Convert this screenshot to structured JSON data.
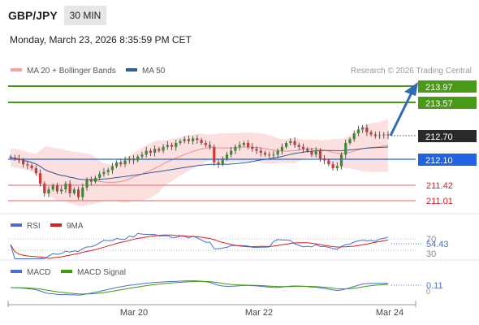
{
  "header": {
    "symbol": "GBP/JPY",
    "timeframe": "30 MIN",
    "datetime": "Monday, March 23, 2026 8:35:59 PM CET",
    "credit": "Research © 2026 Trading Central"
  },
  "colors": {
    "bollinger": "#f7a1a1",
    "ma50": "#2f5d94",
    "resistance": "#4a9a1a",
    "pivot": "#1f63e0",
    "support": "#e88080",
    "arrow": "#2f6cb3",
    "candle_up": "#3b8a32",
    "candle_down": "#c93a3a",
    "rsi": "#4a6fd1",
    "rsi_ma": "#d32020",
    "macd": "#4a6fd1",
    "macd_signal": "#3f9a10"
  },
  "legend": {
    "bb_label": "MA 20 + Bollinger Bands",
    "ma50_label": "MA 50"
  },
  "levels": [
    {
      "value": "213.97",
      "kind": "resistance"
    },
    {
      "value": "213.57",
      "kind": "resistance"
    },
    {
      "value": "212.70",
      "kind": "current"
    },
    {
      "value": "212.10",
      "kind": "pivot"
    },
    {
      "value": "211.42",
      "kind": "support"
    },
    {
      "value": "211.01",
      "kind": "support"
    }
  ],
  "rsi_panel": {
    "label": "RSI",
    "ma_label": "9MA",
    "level_high": "70",
    "level_low": "30",
    "value": "54.43"
  },
  "macd_panel": {
    "label": "MACD",
    "signal_label": "MACD Signal",
    "zero": "0",
    "value": "0.11"
  },
  "x_axis": {
    "ticks": [
      "Mar 20",
      "Mar 22",
      "Mar 24"
    ]
  },
  "chart_data": {
    "type": "candlestick",
    "ylim": [
      210.7,
      214.2
    ],
    "closes": [
      212.12,
      212.1,
      212.05,
      211.95,
      211.92,
      211.85,
      211.72,
      211.45,
      211.2,
      211.3,
      211.4,
      211.25,
      211.3,
      211.45,
      211.2,
      211.3,
      211.1,
      211.35,
      211.55,
      211.5,
      211.6,
      211.7,
      211.75,
      211.8,
      211.9,
      212.0,
      211.95,
      212.05,
      212.1,
      212.05,
      212.15,
      212.2,
      212.3,
      212.25,
      212.35,
      212.3,
      212.4,
      212.45,
      212.4,
      212.5,
      212.55,
      212.6,
      212.55,
      212.62,
      212.58,
      212.5,
      212.45,
      212.4,
      212.0,
      211.95,
      212.1,
      212.2,
      212.3,
      212.4,
      212.45,
      212.5,
      212.4,
      212.35,
      212.3,
      212.25,
      212.2,
      212.18,
      212.2,
      212.3,
      212.4,
      212.5,
      212.55,
      212.45,
      212.4,
      212.35,
      212.3,
      212.2,
      212.3,
      212.1,
      212.05,
      211.95,
      211.85,
      211.9,
      212.2,
      212.5,
      212.6,
      212.75,
      212.85,
      212.9,
      212.78,
      212.72,
      212.68,
      212.7,
      212.72,
      212.7
    ]
  }
}
